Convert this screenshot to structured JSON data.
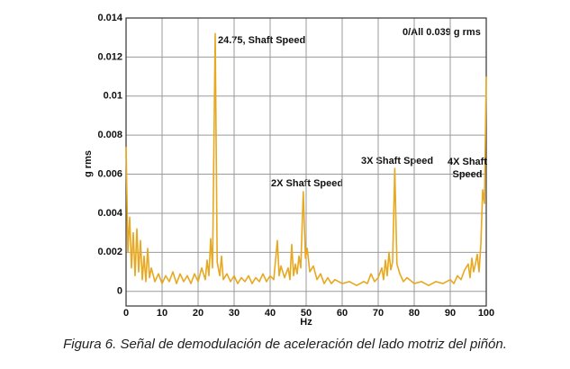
{
  "chart_data": {
    "type": "line",
    "y_label": "g rms",
    "x_label": "Hz",
    "annotations": [
      "24.75, Shaft Speed",
      "2X Shaft Speed",
      "3X Shaft Speed",
      "4X Shaft Speed",
      "0/All 0.039 g rms"
    ],
    "caption": "Figura 6. Señal de demodulación de aceleración del lado motriz del piñón.",
    "xlim": [
      0,
      100
    ],
    "xticks": [
      0,
      10,
      20,
      30,
      40,
      50,
      60,
      70,
      80,
      90,
      100
    ],
    "ylim": [
      -0.00075,
      0.014
    ],
    "yticks": [
      0,
      0.002,
      0.004,
      0.006,
      0.008,
      0.01,
      0.012,
      0.014
    ],
    "grid": true,
    "series": [
      {
        "color": "#e8a820",
        "x": [
          0,
          0.5,
          1,
          1.5,
          2,
          2.5,
          3,
          3.5,
          4,
          4.5,
          5,
          5.5,
          6,
          6.5,
          7,
          8,
          9,
          10,
          11,
          12,
          13,
          14,
          15,
          16,
          17,
          18,
          19,
          20,
          21,
          22,
          22.5,
          23,
          23.5,
          24,
          24.75,
          25.3,
          26,
          26.5,
          27,
          28,
          29,
          30,
          31,
          32,
          33,
          34,
          35,
          36,
          37,
          38,
          39,
          40,
          41,
          42,
          42.5,
          43,
          44,
          45,
          45.5,
          46,
          46.5,
          47,
          47.5,
          48,
          48.5,
          49.2,
          49.8,
          50.3,
          51,
          52,
          53,
          54,
          55,
          56,
          57,
          58,
          60,
          62,
          64,
          66,
          67,
          68,
          69,
          70,
          71,
          71.5,
          72,
          72.5,
          73,
          73.5,
          74,
          74.6,
          75.2,
          76,
          77,
          78,
          80,
          82,
          84,
          86,
          88,
          90,
          91,
          92,
          93,
          94,
          95,
          95.5,
          96,
          96.5,
          97,
          97.5,
          98,
          98.5,
          99,
          99.5,
          100
        ],
        "values": [
          0.0074,
          0.002,
          0.0038,
          0.0012,
          0.003,
          0.0008,
          0.0032,
          0.001,
          0.0026,
          0.0006,
          0.0018,
          0.0005,
          0.0022,
          0.0007,
          0.0012,
          0.0005,
          0.0009,
          0.0004,
          0.0008,
          0.0005,
          0.001,
          0.0004,
          0.0009,
          0.0005,
          0.0008,
          0.0004,
          0.0009,
          0.0005,
          0.0012,
          0.0006,
          0.0016,
          0.0008,
          0.0027,
          0.0012,
          0.0132,
          0.0015,
          0.0008,
          0.0018,
          0.0006,
          0.0009,
          0.0005,
          0.0008,
          0.0004,
          0.0007,
          0.0005,
          0.0008,
          0.0004,
          0.0007,
          0.0005,
          0.0009,
          0.0005,
          0.0008,
          0.0006,
          0.0026,
          0.0008,
          0.0013,
          0.0007,
          0.0012,
          0.0006,
          0.0024,
          0.0008,
          0.0014,
          0.0009,
          0.0018,
          0.0012,
          0.0051,
          0.0017,
          0.0022,
          0.001,
          0.0013,
          0.0006,
          0.0009,
          0.0004,
          0.0007,
          0.0004,
          0.0006,
          0.0004,
          0.0005,
          0.0003,
          0.0005,
          0.0004,
          0.0009,
          0.0005,
          0.0007,
          0.0012,
          0.0006,
          0.0016,
          0.0008,
          0.002,
          0.0011,
          0.0015,
          0.0063,
          0.0014,
          0.0009,
          0.0005,
          0.0007,
          0.0004,
          0.0005,
          0.0003,
          0.0005,
          0.0004,
          0.0006,
          0.0004,
          0.0008,
          0.0006,
          0.0011,
          0.0014,
          0.0007,
          0.0017,
          0.001,
          0.0014,
          0.0019,
          0.001,
          0.0024,
          0.0052,
          0.0045,
          0.011
        ]
      }
    ]
  }
}
